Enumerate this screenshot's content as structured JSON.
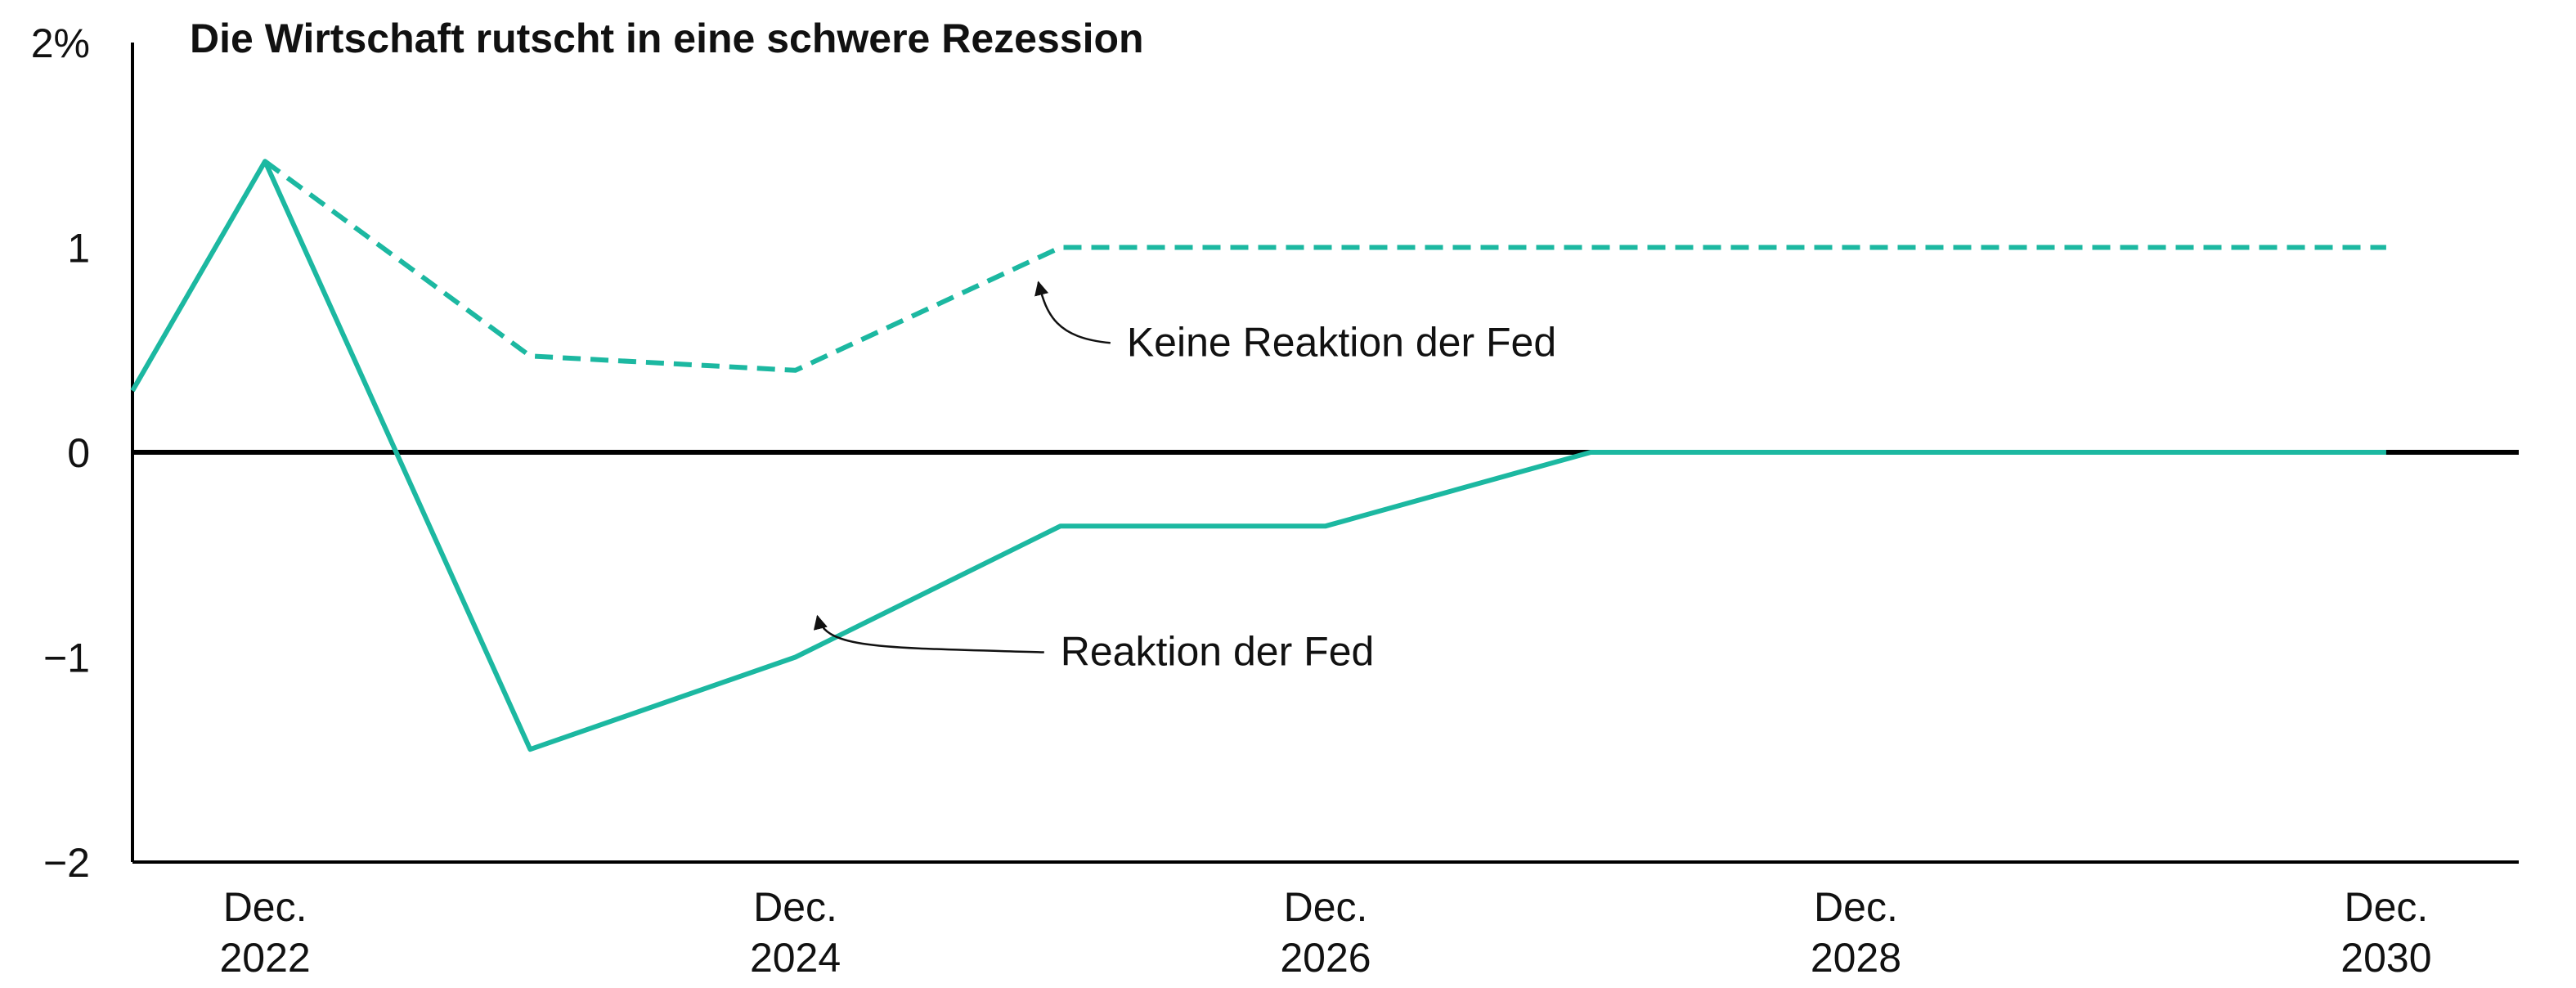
{
  "chart_data": {
    "type": "line",
    "title": "Die Wirtschaft rutscht in eine schwere Rezession",
    "xlabel": "",
    "ylabel": "",
    "ylim": [
      -2,
      2
    ],
    "yticks": [
      {
        "value": 2,
        "label": "2%"
      },
      {
        "value": 1,
        "label": "1"
      },
      {
        "value": 0,
        "label": "0"
      },
      {
        "value": -1,
        "label": "−1"
      },
      {
        "value": -2,
        "label": "−2"
      }
    ],
    "xlim": [
      "2022-06",
      "2031-06"
    ],
    "xticks": [
      {
        "date": "2022-12",
        "line1": "Dec.",
        "line2": "2022"
      },
      {
        "date": "2024-12",
        "line1": "Dec.",
        "line2": "2024"
      },
      {
        "date": "2026-12",
        "line1": "Dec.",
        "line2": "2026"
      },
      {
        "date": "2028-12",
        "line1": "Dec.",
        "line2": "2028"
      },
      {
        "date": "2030-12",
        "line1": "Dec.",
        "line2": "2030"
      }
    ],
    "grid": false,
    "series": [
      {
        "name": "Keine Reaktion der Fed",
        "style": "dashed",
        "color": "#1cb8a1",
        "x": [
          "2022-12",
          "2023-12",
          "2024-12",
          "2025-12",
          "2026-12",
          "2027-12",
          "2028-12",
          "2029-12",
          "2030-12"
        ],
        "y": [
          1.42,
          0.47,
          0.4,
          1.0,
          1.0,
          1.0,
          1.0,
          1.0,
          1.0
        ]
      },
      {
        "name": "Reaktion der Fed",
        "style": "solid",
        "color": "#1cb8a1",
        "x": [
          "2022-06",
          "2022-12",
          "2023-12",
          "2024-12",
          "2025-12",
          "2026-12",
          "2027-12",
          "2028-12",
          "2029-12",
          "2030-12"
        ],
        "y": [
          0.3,
          1.42,
          -1.45,
          -1.0,
          -0.36,
          -0.36,
          0.0,
          0.0,
          0.0,
          0.0
        ]
      }
    ],
    "annotations": [
      {
        "text": "Keine Reaktion der Fed",
        "series": 0,
        "target": [
          "2025-11",
          0.83
        ],
        "label_at": [
          "2026-03",
          0.47
        ]
      },
      {
        "text": "Reaktion der Fed",
        "series": 1,
        "target": [
          "2025-01",
          -0.8
        ],
        "label_at": [
          "2026-00",
          -1.04
        ]
      }
    ],
    "zero_line_color": "#000000",
    "axis_color": "#000000"
  }
}
